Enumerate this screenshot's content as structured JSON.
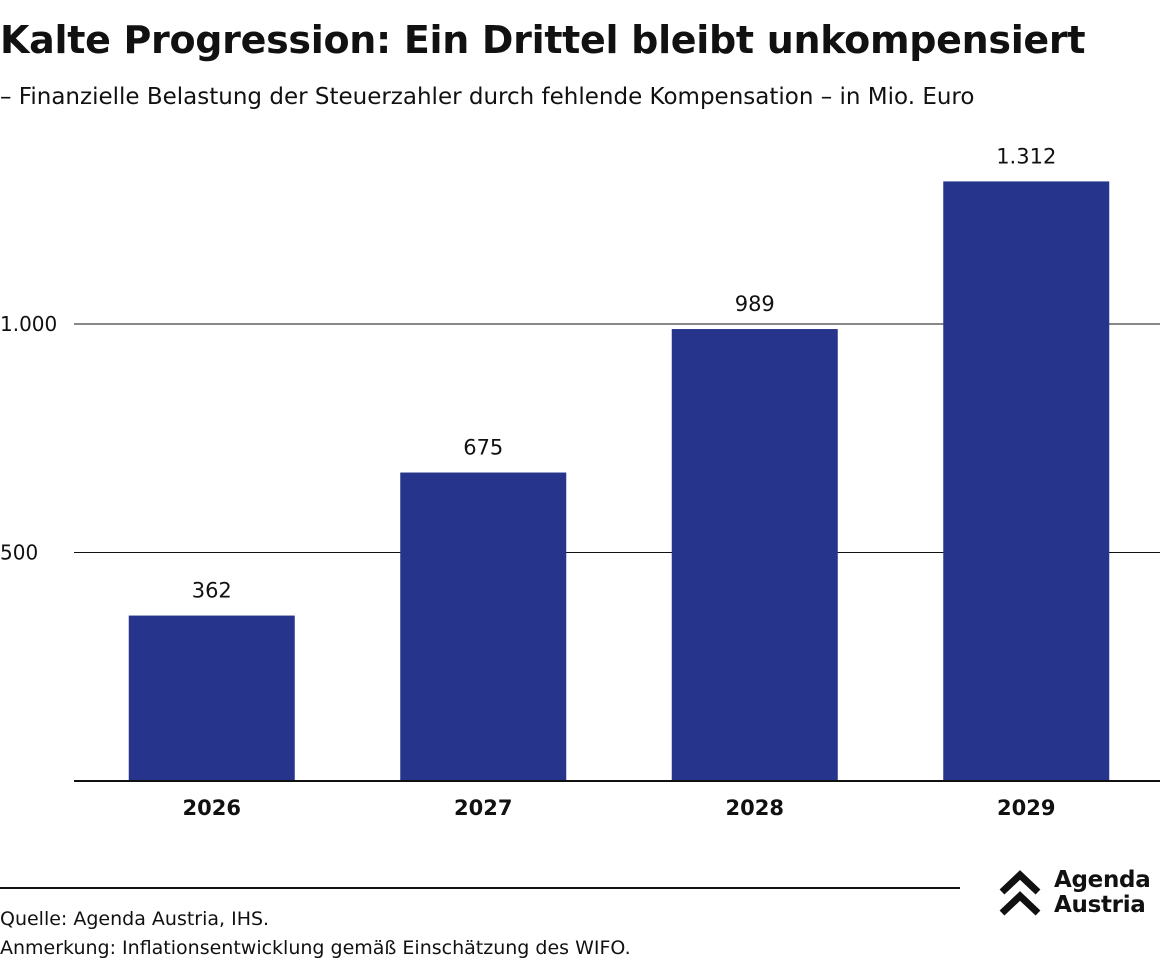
{
  "title": "Kalte Progression: Ein Drittel bleibt unkompensiert",
  "subtitle": "– Finanzielle Belastung der Steuerzahler durch fehlende Kompensation – in Mio. Euro",
  "footer": {
    "source": "Quelle: Agenda Austria, IHS.",
    "note": "Anmerkung: Inflationsentwicklung gemäß Einschätzung des WIFO."
  },
  "logo": {
    "line1": "Agenda",
    "line2": "Austria",
    "icon": "double-chevron-up-icon"
  },
  "colors": {
    "bar": "#27348b",
    "text": "#111111",
    "grid": "#111111"
  },
  "chart_data": {
    "type": "bar",
    "categories": [
      "2026",
      "2027",
      "2028",
      "2029"
    ],
    "values": [
      362,
      675,
      989,
      1312
    ],
    "value_labels": [
      "362",
      "675",
      "989",
      "1.312"
    ],
    "yticks": [
      500,
      1000
    ],
    "ytick_labels": [
      "500",
      "1.000"
    ],
    "ylim": [
      0,
      1400
    ],
    "grid": true
  }
}
